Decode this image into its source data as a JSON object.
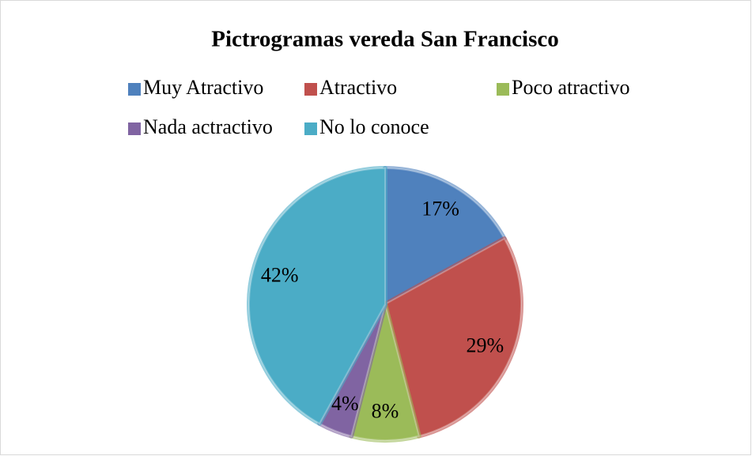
{
  "chart_data": {
    "type": "pie",
    "title": "Pictrogramas vereda San Francisco",
    "categories": [
      "Muy Atractivo",
      "Atractivo",
      "Poco atractivo",
      "Nada actractivo",
      "No lo conoce"
    ],
    "values": [
      17,
      29,
      8,
      4,
      42
    ],
    "value_labels": [
      "17%",
      "29%",
      "8%",
      "4%",
      "42%"
    ],
    "colors": [
      "#4f81bd",
      "#c0504d",
      "#9bbb59",
      "#8064a2",
      "#4bacc6"
    ],
    "legend": "top"
  }
}
